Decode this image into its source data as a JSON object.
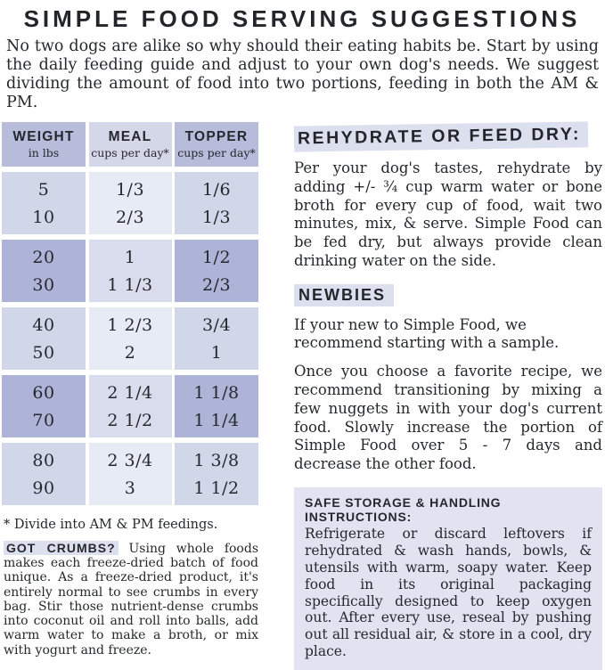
{
  "page": {
    "title": "SIMPLE FOOD SERVING SUGGESTIONS",
    "intro": "No two dogs are alike so why should their eating habits be. Start by using the daily feeding guide and adjust to your own dog's needs. We suggest dividing the amount of food into two portions, feeding in both the AM & PM."
  },
  "table": {
    "headers": [
      {
        "title": "WEIGHT",
        "subtitle": "in lbs"
      },
      {
        "title": "MEAL",
        "subtitle": "cups per day*"
      },
      {
        "title": "TOPPER",
        "subtitle": "cups per day*"
      }
    ],
    "groups": [
      {
        "rows": [
          {
            "weight": "5",
            "meal": "1/3",
            "topper": "1/6"
          },
          {
            "weight": "10",
            "meal": "2/3",
            "topper": "1/3"
          }
        ]
      },
      {
        "rows": [
          {
            "weight": "20",
            "meal": "1",
            "topper": "1/2"
          },
          {
            "weight": "30",
            "meal": "1 1/3",
            "topper": "2/3"
          }
        ]
      },
      {
        "rows": [
          {
            "weight": "40",
            "meal": "1 2/3",
            "topper": "3/4"
          },
          {
            "weight": "50",
            "meal": "2",
            "topper": "1"
          }
        ]
      },
      {
        "rows": [
          {
            "weight": "60",
            "meal": "2 1/4",
            "topper": "1 1/8"
          },
          {
            "weight": "70",
            "meal": "2 1/2",
            "topper": "1 1/4"
          }
        ]
      },
      {
        "rows": [
          {
            "weight": "80",
            "meal": "2 3/4",
            "topper": "1 3/8"
          },
          {
            "weight": "90",
            "meal": "3",
            "topper": "1 1/2"
          }
        ]
      }
    ],
    "footnote": "* Divide into AM & PM feedings."
  },
  "crumbs": {
    "heading": "GOT CRUMBS?",
    "body": "Using whole foods makes each freeze-dried batch of food unique. As a freeze-dried product, it's entirely normal to see crumbs in every bag. Stir those nutrient-dense crumbs into coconut oil and roll into balls, add warm water to make a broth, or mix with yogurt and freeze."
  },
  "rehydrate": {
    "heading": "REHYDRATE OR FEED DRY:",
    "body": "Per your dog's tastes, rehydrate by adding +/- ¾ cup warm water or bone broth for every cup of food, wait two minutes, mix, & serve. Simple Food can be fed dry, but always provide clean drinking water on the side."
  },
  "newbies": {
    "heading": "NEWBIES",
    "body1": "If your new to Simple Food, we recommend starting with a sample.",
    "body2": "Once you choose a favorite recipe, we recommend transitioning by mixing a few nuggets in with your dog's current food. Slowly increase the portion of Simple Food over 5 - 7 days and decrease the other food."
  },
  "storage": {
    "heading": "SAFE STORAGE & HANDLING INSTRUCTIONS:",
    "body": "Refrigerate or discard leftovers if rehydrated & wash hands, bowls, & utensils with warm, soapy water. Keep food in its original packaging specifically designed to keep oxygen out. After every use, reseal by pushing out all residual air, & store in a cool, dry place."
  },
  "colors": {
    "text": "#26282e",
    "header_side": "#b7bcda",
    "header_mid": "#d4d7e8",
    "group_light_side": "#cfd7e9",
    "group_light_mid": "#e7ebf5",
    "group_dark_side": "#aeb4d7",
    "group_dark_mid": "#d9dcec",
    "highlight": "#dcdfee",
    "storage_box": "#e1e3f0",
    "background": "#ffffff"
  }
}
